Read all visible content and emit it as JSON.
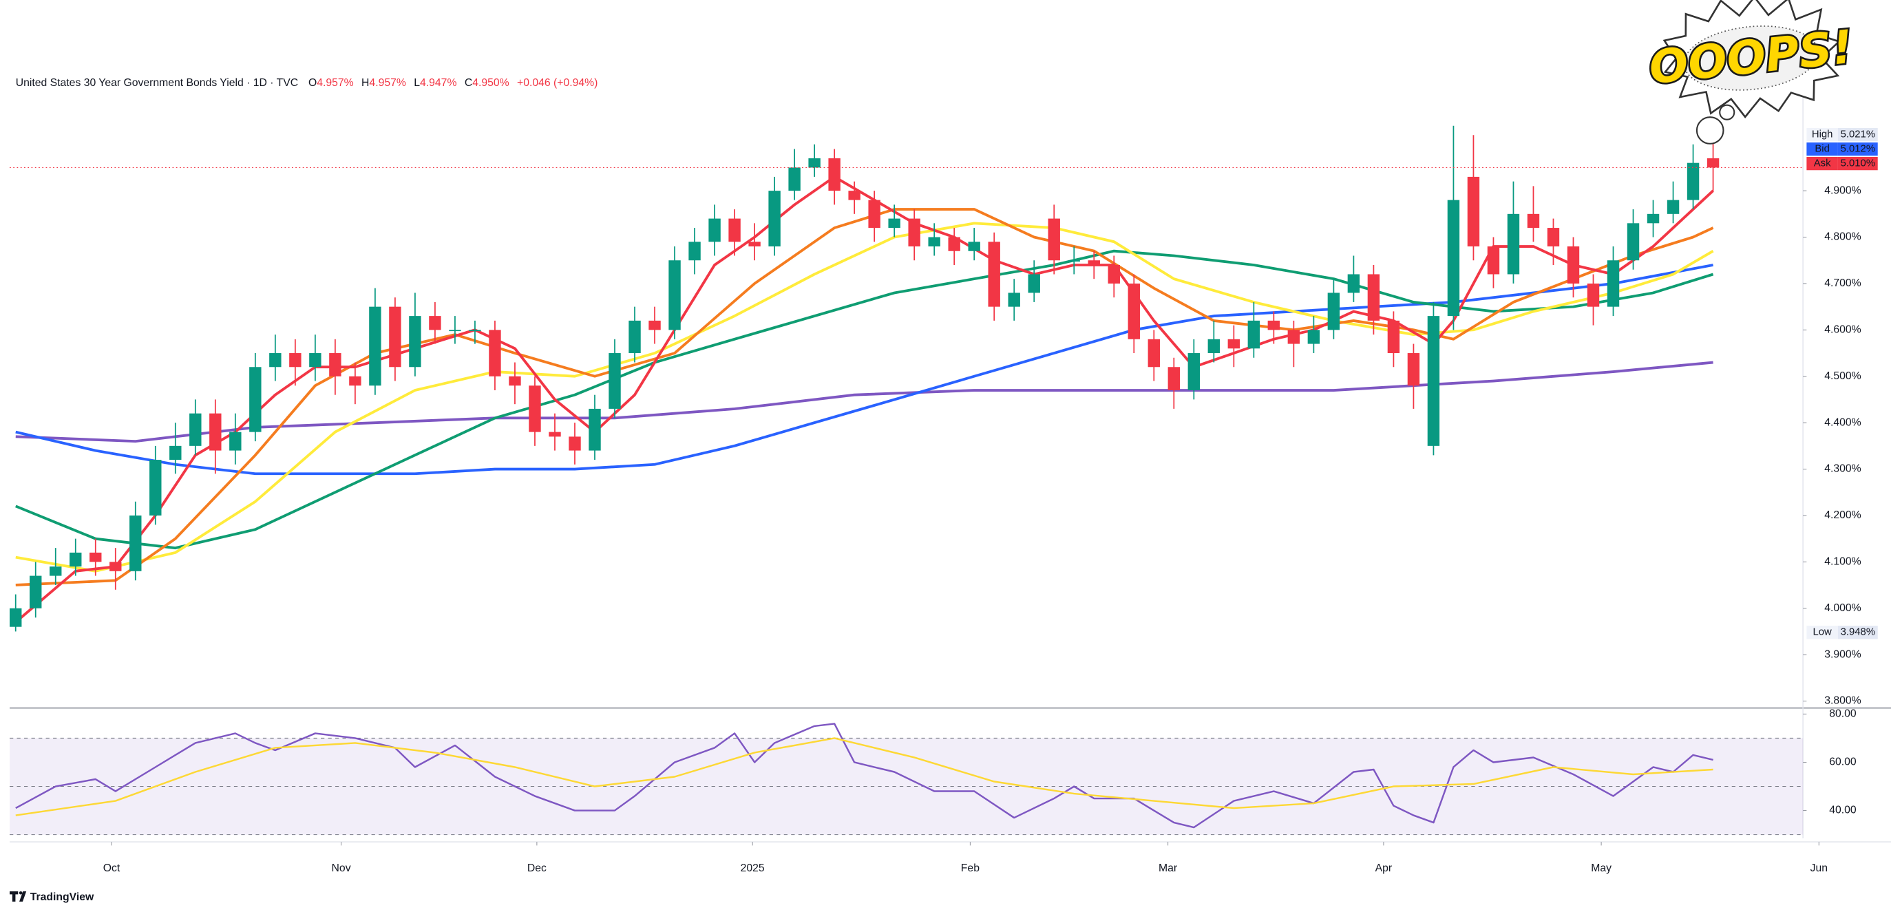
{
  "chart_data": {
    "type": "candlestick",
    "header": {
      "title": "United States 30 Year Government Bonds Yield · 1D · TVC",
      "ohlc": [
        {
          "key": "O",
          "value": "4.957%"
        },
        {
          "key": "H",
          "value": "4.957%"
        },
        {
          "key": "L",
          "value": "4.947%"
        },
        {
          "key": "C",
          "value": "4.950%"
        }
      ],
      "change": "+0.046 (+0.94%)"
    },
    "up_color": "#089981",
    "down_color": "#f23645",
    "xlim": [
      -0.3,
      89.5
    ],
    "xticks": [
      {
        "value": 4.8,
        "label": "Oct"
      },
      {
        "value": 16.3,
        "label": "Nov"
      },
      {
        "value": 26.1,
        "label": "Dec"
      },
      {
        "value": 36.9,
        "label": "2025"
      },
      {
        "value": 47.8,
        "label": "Feb"
      },
      {
        "value": 57.7,
        "label": "Mar"
      },
      {
        "value": 68.5,
        "label": "Apr"
      },
      {
        "value": 79.4,
        "label": "May"
      },
      {
        "value": 90.3,
        "label": "Jun"
      }
    ],
    "ylim": [
      3.785,
      5.16
    ],
    "yticks": [
      {
        "value": 3.8,
        "label": "3.800%"
      },
      {
        "value": 3.9,
        "label": "3.900%"
      },
      {
        "value": 4.0,
        "label": "4.000%"
      },
      {
        "value": 4.1,
        "label": "4.100%"
      },
      {
        "value": 4.2,
        "label": "4.200%"
      },
      {
        "value": 4.3,
        "label": "4.300%"
      },
      {
        "value": 4.4,
        "label": "4.400%"
      },
      {
        "value": 4.5,
        "label": "4.500%"
      },
      {
        "value": 4.6,
        "label": "4.600%"
      },
      {
        "value": 4.7,
        "label": "4.700%"
      },
      {
        "value": 4.8,
        "label": "4.800%"
      },
      {
        "value": 4.9,
        "label": "4.900%"
      }
    ],
    "candles": {
      "x": [
        0,
        1,
        2,
        3,
        4,
        5,
        6,
        7,
        8,
        9,
        10,
        11,
        12,
        13,
        14,
        15,
        16,
        17,
        18,
        19,
        20,
        21,
        22,
        23,
        24,
        25,
        26,
        27,
        28,
        29,
        30,
        31,
        32,
        33,
        34,
        35,
        36,
        37,
        38,
        39,
        40,
        41,
        42,
        43,
        44,
        45,
        46,
        47,
        48,
        49,
        50,
        51,
        52,
        53,
        54,
        55,
        56,
        57,
        58,
        59,
        60,
        61,
        62,
        63,
        64,
        65,
        66,
        67,
        68,
        69,
        70,
        71,
        72,
        73,
        74,
        75,
        76,
        77,
        78,
        79,
        80,
        81,
        82,
        83,
        84,
        85
      ],
      "open": [
        3.96,
        4.0,
        4.07,
        4.09,
        4.12,
        4.1,
        4.08,
        4.2,
        4.32,
        4.35,
        4.42,
        4.34,
        4.38,
        4.52,
        4.55,
        4.52,
        4.55,
        4.5,
        4.48,
        4.65,
        4.52,
        4.63,
        4.6,
        4.6,
        4.6,
        4.5,
        4.48,
        4.38,
        4.37,
        4.34,
        4.43,
        4.55,
        4.62,
        4.6,
        4.75,
        4.79,
        4.84,
        4.79,
        4.78,
        4.9,
        4.95,
        4.97,
        4.9,
        4.88,
        4.82,
        4.84,
        4.78,
        4.8,
        4.77,
        4.79,
        4.65,
        4.68,
        4.84,
        4.75,
        4.75,
        4.74,
        4.7,
        4.58,
        4.52,
        4.47,
        4.55,
        4.58,
        4.56,
        4.62,
        4.6,
        4.57,
        4.6,
        4.68,
        4.72,
        4.62,
        4.55,
        4.35,
        4.63,
        4.93,
        4.78,
        4.72,
        4.85,
        4.82,
        4.78,
        4.7,
        4.65,
        4.75,
        4.83,
        4.85,
        4.88,
        4.97
      ],
      "high": [
        4.03,
        4.1,
        4.13,
        4.15,
        4.15,
        4.13,
        4.23,
        4.35,
        4.4,
        4.45,
        4.45,
        4.42,
        4.55,
        4.59,
        4.58,
        4.59,
        4.58,
        4.53,
        4.69,
        4.67,
        4.68,
        4.66,
        4.63,
        4.62,
        4.62,
        4.53,
        4.5,
        4.42,
        4.4,
        4.46,
        4.58,
        4.65,
        4.65,
        4.78,
        4.82,
        4.87,
        4.86,
        4.83,
        4.93,
        4.99,
        5.0,
        4.99,
        4.92,
        4.9,
        4.87,
        4.86,
        4.83,
        4.82,
        4.82,
        4.81,
        4.71,
        4.75,
        4.87,
        4.78,
        4.77,
        4.76,
        4.72,
        4.6,
        4.54,
        4.58,
        4.62,
        4.61,
        4.66,
        4.64,
        4.62,
        4.63,
        4.71,
        4.76,
        4.74,
        4.64,
        4.57,
        4.66,
        5.04,
        5.02,
        4.8,
        4.92,
        4.91,
        4.84,
        4.8,
        4.72,
        4.78,
        4.86,
        4.88,
        4.92,
        5.0,
        5.02
      ],
      "low": [
        3.95,
        3.98,
        4.05,
        4.07,
        4.07,
        4.04,
        4.06,
        4.18,
        4.29,
        4.33,
        4.29,
        4.31,
        4.36,
        4.49,
        4.48,
        4.49,
        4.46,
        4.44,
        4.46,
        4.49,
        4.5,
        4.57,
        4.57,
        4.57,
        4.47,
        4.44,
        4.35,
        4.34,
        4.31,
        4.32,
        4.41,
        4.53,
        4.57,
        4.58,
        4.72,
        4.76,
        4.76,
        4.75,
        4.76,
        4.88,
        4.93,
        4.87,
        4.85,
        4.79,
        4.8,
        4.75,
        4.76,
        4.74,
        4.75,
        4.62,
        4.62,
        4.66,
        4.72,
        4.72,
        4.71,
        4.67,
        4.55,
        4.49,
        4.43,
        4.45,
        4.53,
        4.52,
        4.54,
        4.57,
        4.52,
        4.55,
        4.58,
        4.66,
        4.59,
        4.52,
        4.43,
        4.33,
        4.6,
        4.75,
        4.69,
        4.7,
        4.79,
        4.74,
        4.67,
        4.61,
        4.63,
        4.73,
        4.8,
        4.83,
        4.86,
        4.9
      ],
      "close": [
        4.0,
        4.07,
        4.09,
        4.12,
        4.1,
        4.08,
        4.2,
        4.32,
        4.35,
        4.42,
        4.34,
        4.38,
        4.52,
        4.55,
        4.52,
        4.55,
        4.5,
        4.48,
        4.65,
        4.52,
        4.63,
        4.6,
        4.6,
        4.6,
        4.5,
        4.48,
        4.38,
        4.37,
        4.34,
        4.43,
        4.55,
        4.62,
        4.6,
        4.75,
        4.79,
        4.84,
        4.79,
        4.78,
        4.9,
        4.95,
        4.97,
        4.9,
        4.88,
        4.82,
        4.84,
        4.78,
        4.8,
        4.77,
        4.79,
        4.65,
        4.68,
        4.72,
        4.75,
        4.75,
        4.74,
        4.7,
        4.58,
        4.52,
        4.47,
        4.55,
        4.58,
        4.56,
        4.62,
        4.6,
        4.57,
        4.6,
        4.68,
        4.72,
        4.62,
        4.55,
        4.48,
        4.63,
        4.88,
        4.78,
        4.72,
        4.85,
        4.82,
        4.78,
        4.7,
        4.65,
        4.75,
        4.83,
        4.85,
        4.88,
        4.96,
        4.95
      ]
    },
    "series": [
      {
        "color": "#7e57c2",
        "x": [
          0,
          6,
          12,
          18,
          24,
          30,
          36,
          42,
          48,
          54,
          60,
          66,
          70,
          74,
          80,
          85
        ],
        "values": [
          4.37,
          4.36,
          4.39,
          4.4,
          4.41,
          4.41,
          4.43,
          4.46,
          4.47,
          4.47,
          4.47,
          4.47,
          4.48,
          4.49,
          4.51,
          4.53
        ]
      },
      {
        "color": "#2962ff",
        "x": [
          0,
          4,
          8,
          12,
          16,
          20,
          24,
          28,
          32,
          36,
          40,
          44,
          48,
          52,
          56,
          60,
          64,
          68,
          72,
          76,
          80,
          85
        ],
        "values": [
          4.38,
          4.34,
          4.31,
          4.29,
          4.29,
          4.29,
          4.3,
          4.3,
          4.31,
          4.35,
          4.4,
          4.45,
          4.5,
          4.55,
          4.6,
          4.63,
          4.64,
          4.65,
          4.66,
          4.68,
          4.7,
          4.74
        ]
      },
      {
        "color": "#0f9d72",
        "x": [
          0,
          4,
          8,
          12,
          16,
          20,
          24,
          28,
          32,
          36,
          40,
          44,
          48,
          52,
          55,
          58,
          62,
          66,
          70,
          74,
          78,
          82,
          85
        ],
        "values": [
          4.22,
          4.15,
          4.13,
          4.17,
          4.25,
          4.33,
          4.41,
          4.46,
          4.53,
          4.58,
          4.63,
          4.68,
          4.71,
          4.74,
          4.77,
          4.76,
          4.74,
          4.71,
          4.66,
          4.64,
          4.65,
          4.68,
          4.72
        ]
      },
      {
        "color": "#ffeb3b",
        "x": [
          0,
          4,
          8,
          12,
          16,
          20,
          24,
          28,
          32,
          36,
          40,
          44,
          48,
          52,
          55,
          58,
          62,
          66,
          70,
          73,
          76,
          80,
          83,
          85
        ],
        "values": [
          4.11,
          4.08,
          4.12,
          4.23,
          4.38,
          4.47,
          4.51,
          4.5,
          4.55,
          4.63,
          4.72,
          4.8,
          4.83,
          4.82,
          4.79,
          4.71,
          4.66,
          4.62,
          4.59,
          4.6,
          4.64,
          4.68,
          4.72,
          4.77
        ]
      },
      {
        "color": "#f57c1f",
        "x": [
          0,
          5,
          8,
          12,
          15,
          18,
          22,
          25,
          29,
          33,
          37,
          41,
          44,
          48,
          51,
          54,
          57,
          60,
          64,
          67,
          70,
          72,
          75,
          78,
          81,
          84,
          85
        ],
        "values": [
          4.05,
          4.06,
          4.15,
          4.33,
          4.48,
          4.55,
          4.59,
          4.55,
          4.5,
          4.55,
          4.7,
          4.82,
          4.86,
          4.86,
          4.8,
          4.77,
          4.69,
          4.62,
          4.6,
          4.62,
          4.6,
          4.58,
          4.66,
          4.71,
          4.76,
          4.8,
          4.82
        ]
      },
      {
        "color": "#f23645",
        "x": [
          0,
          3,
          5,
          7,
          9,
          11,
          13,
          15,
          17,
          20,
          23,
          25,
          27,
          29,
          31,
          33,
          35,
          37,
          39,
          41,
          43,
          45,
          47,
          49,
          51,
          53,
          55,
          57,
          59,
          61,
          63,
          65,
          67,
          69,
          71,
          72,
          74,
          76,
          78,
          80,
          82,
          84,
          85
        ],
        "values": [
          3.97,
          4.08,
          4.09,
          4.2,
          4.33,
          4.38,
          4.46,
          4.52,
          4.52,
          4.56,
          4.6,
          4.56,
          4.45,
          4.38,
          4.46,
          4.6,
          4.74,
          4.8,
          4.87,
          4.93,
          4.88,
          4.83,
          4.8,
          4.75,
          4.72,
          4.74,
          4.74,
          4.62,
          4.52,
          4.55,
          4.58,
          4.6,
          4.64,
          4.62,
          4.57,
          4.62,
          4.78,
          4.78,
          4.74,
          4.72,
          4.78,
          4.86,
          4.9
        ]
      }
    ],
    "price_labels": [
      {
        "name": "High",
        "value": 5.021,
        "value_label": "5.021%",
        "color": "#e3e8f4"
      },
      {
        "name": "Bid",
        "value": 5.012,
        "value_label": "5.012%",
        "color": "#2962ff"
      },
      {
        "name": "Ask",
        "value": 5.01,
        "value_label": "5.010%",
        "color": "#f23645"
      },
      {
        "name": "Low",
        "value": 3.948,
        "value_label": "3.948%",
        "color": "#e3e8f4"
      }
    ],
    "rsi": {
      "ylim": [
        28.5,
        82
      ],
      "yticks": [
        {
          "value": 80,
          "label": "80.00"
        },
        {
          "value": 60,
          "label": "60.00"
        },
        {
          "value": 40,
          "label": "40.00"
        }
      ],
      "levels": [
        70,
        50,
        30
      ],
      "band_color": "#7e57c2",
      "series": [
        {
          "color": "#7e57c2",
          "x": [
            0,
            2,
            4,
            5,
            7,
            9,
            11,
            12,
            13,
            15,
            17,
            19,
            20,
            22,
            24,
            26,
            28,
            30,
            31,
            33,
            35,
            36,
            37,
            38,
            40,
            41,
            42,
            44,
            46,
            48,
            50,
            52,
            53,
            54,
            56,
            57,
            58,
            59,
            61,
            63,
            65,
            67,
            68,
            69,
            70,
            71,
            72,
            73,
            74,
            76,
            78,
            80,
            82,
            83,
            84,
            85
          ],
          "values": [
            41,
            50,
            53,
            48,
            58,
            68,
            72,
            68,
            65,
            72,
            70,
            66,
            58,
            67,
            54,
            46,
            40,
            40,
            46,
            60,
            66,
            72,
            60,
            68,
            75,
            76,
            60,
            56,
            48,
            48,
            37,
            45,
            50,
            45,
            45,
            40,
            35,
            33,
            44,
            48,
            43,
            56,
            57,
            42,
            38,
            35,
            58,
            65,
            60,
            62,
            55,
            46,
            58,
            56,
            63,
            61
          ]
        },
        {
          "color": "#fdd835",
          "x": [
            0,
            5,
            9,
            13,
            17,
            21,
            25,
            29,
            33,
            37,
            41,
            45,
            49,
            53,
            57,
            61,
            65,
            69,
            73,
            77,
            81,
            85
          ],
          "values": [
            38,
            44,
            56,
            66,
            68,
            64,
            58,
            50,
            54,
            64,
            70,
            62,
            52,
            47,
            44,
            41,
            43,
            50,
            51,
            58,
            55,
            57
          ]
        }
      ]
    },
    "sticker": "OOOPS!",
    "brand": "TradingView"
  }
}
